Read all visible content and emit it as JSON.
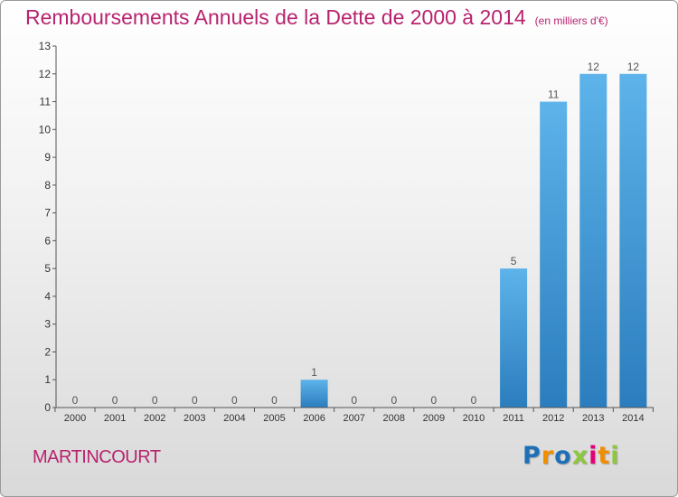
{
  "title": "Remboursements Annuels de la Dette de 2000 à 2014",
  "unit": "(en milliers d'€)",
  "commune": "MARTINCOURT",
  "brand": [
    "P",
    "r",
    "o",
    "x",
    "i",
    "t",
    "i"
  ],
  "colors": {
    "title": "#b8236f",
    "bar_top": "#5db3ea",
    "bar_bottom": "#2b7dbd",
    "axis": "#555555",
    "brand": [
      "#1d6fb8",
      "#f18d00",
      "#1d6fb8",
      "#8dc63f",
      "#e2007a",
      "#f18d00",
      "#8dc63f"
    ]
  },
  "chart_data": {
    "type": "bar",
    "categories": [
      "2000",
      "2001",
      "2002",
      "2003",
      "2004",
      "2005",
      "2006",
      "2007",
      "2008",
      "2009",
      "2010",
      "2011",
      "2012",
      "2013",
      "2014"
    ],
    "values": [
      0,
      0,
      0,
      0,
      0,
      0,
      1,
      0,
      0,
      0,
      0,
      5,
      11,
      12,
      12
    ],
    "y_ticks": [
      0,
      1,
      2,
      3,
      4,
      5,
      6,
      7,
      8,
      9,
      10,
      11,
      12,
      13
    ],
    "ylim": [
      0,
      13
    ],
    "grid": false,
    "legend": "none"
  }
}
